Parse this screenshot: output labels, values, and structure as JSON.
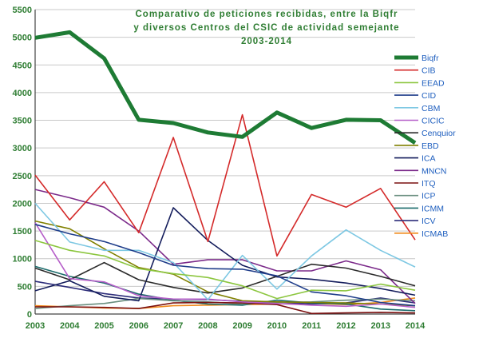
{
  "chart_data": {
    "type": "line",
    "title_lines": [
      "Comparativo de peticiones recibidas, entre la Biqfr",
      "y diversos Centros del CSIC de actividad semejante",
      "2003-2014"
    ],
    "xlabel": "",
    "ylabel": "",
    "x": [
      "2003",
      "2004",
      "2005",
      "2006",
      "2007",
      "2008",
      "2009",
      "2010",
      "2011",
      "2012",
      "2013",
      "2014"
    ],
    "yticks": [
      "0",
      "500",
      "1000",
      "1500",
      "2000",
      "2500",
      "3000",
      "3500",
      "4000",
      "4500",
      "5000",
      "5500"
    ],
    "ylim": [
      0,
      5500
    ],
    "grid": true,
    "legend_position": "right",
    "series": [
      {
        "name": "Biqfr",
        "color": "#1e7b34",
        "values": [
          4990,
          5090,
          4620,
          3510,
          3450,
          3280,
          3200,
          3640,
          3360,
          3510,
          3500,
          3090
        ]
      },
      {
        "name": "CIB",
        "color": "#d42a2a",
        "values": [
          2510,
          1700,
          2390,
          1470,
          3190,
          1310,
          3600,
          1050,
          2160,
          1930,
          2270,
          1340
        ]
      },
      {
        "name": "EEAD",
        "color": "#8cc63f",
        "values": [
          1330,
          1150,
          1050,
          820,
          730,
          660,
          510,
          280,
          430,
          420,
          540,
          430
        ]
      },
      {
        "name": "CID",
        "color": "#1f3d8a",
        "values": [
          1620,
          1450,
          1310,
          1110,
          880,
          820,
          810,
          690,
          400,
          330,
          210,
          150
        ]
      },
      {
        "name": "CBM",
        "color": "#7ec8e3",
        "values": [
          2000,
          1300,
          1150,
          1150,
          930,
          260,
          1060,
          450,
          1050,
          1520,
          1150,
          850
        ]
      },
      {
        "name": "CICIC",
        "color": "#b65fc9",
        "values": [
          1650,
          640,
          580,
          330,
          270,
          270,
          220,
          190,
          160,
          140,
          180,
          120
        ]
      },
      {
        "name": "Cenquior",
        "color": "#2b2b2b",
        "values": [
          830,
          620,
          930,
          620,
          480,
          380,
          470,
          680,
          900,
          830,
          680,
          510
        ]
      },
      {
        "name": "EBD",
        "color": "#808000",
        "values": [
          1680,
          1540,
          1180,
          840,
          720,
          400,
          240,
          220,
          210,
          200,
          180,
          150
        ]
      },
      {
        "name": "ICA",
        "color": "#141d5c",
        "values": [
          420,
          600,
          320,
          240,
          1920,
          1330,
          880,
          670,
          630,
          560,
          460,
          340
        ]
      },
      {
        "name": "MNCN",
        "color": "#7b2a8a",
        "values": [
          2250,
          2100,
          1930,
          1500,
          900,
          980,
          980,
          780,
          780,
          960,
          800,
          190
        ]
      },
      {
        "name": "ITQ",
        "color": "#7a1010",
        "values": [
          130,
          130,
          120,
          100,
          200,
          210,
          200,
          170,
          10,
          20,
          30,
          20
        ]
      },
      {
        "name": "ICP",
        "color": "#6a8f7f",
        "values": [
          100,
          150,
          190,
          280,
          240,
          220,
          180,
          210,
          220,
          250,
          270,
          240
        ]
      },
      {
        "name": "ICMM",
        "color": "#1a6b6b",
        "values": [
          860,
          680,
          560,
          360,
          250,
          180,
          160,
          250,
          200,
          180,
          90,
          60
        ]
      },
      {
        "name": "ICV",
        "color": "#2d2d7a",
        "values": [
          590,
          480,
          370,
          290,
          270,
          260,
          230,
          220,
          180,
          200,
          290,
          200
        ]
      },
      {
        "name": "ICMAB",
        "color": "#f08a1c",
        "values": [
          150,
          130,
          110,
          100,
          150,
          160,
          170,
          180,
          190,
          170,
          210,
          290
        ]
      }
    ]
  }
}
